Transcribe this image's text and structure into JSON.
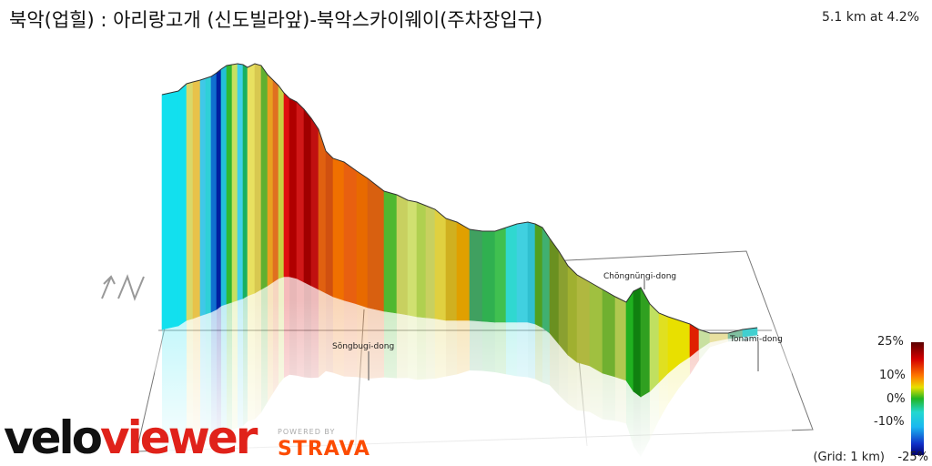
{
  "header": {
    "title": "북악(업힐) : 아리랑고개 (신도빌라앞)-북악스카이웨이(주차장입구)",
    "stats": "5.1 km at 4.2%"
  },
  "places": {
    "songbugi": "Sŏngbugi-dong",
    "chongnungi": "Chŏngnŭngi-dong",
    "tonami": "Tonami-dong"
  },
  "legend": {
    "max": "25%",
    "p10": "10%",
    "zero": "0%",
    "m10": "-10%",
    "grid_note": "(Grid: 1 km)",
    "min": "-25%",
    "gradient_colors": [
      "#5a0000",
      "#b30000",
      "#e60000",
      "#ff6a00",
      "#ffd000",
      "#d8e000",
      "#1fb51f",
      "#2fd4b0",
      "#1fd6f0",
      "#3aa0ff",
      "#0000a0"
    ]
  },
  "brand": {
    "velo": "velo",
    "viewer": "viewer",
    "powered": "POWERED BY",
    "strava": "STRAVA"
  },
  "icons": {
    "compass": "north-arrow-icon"
  }
}
